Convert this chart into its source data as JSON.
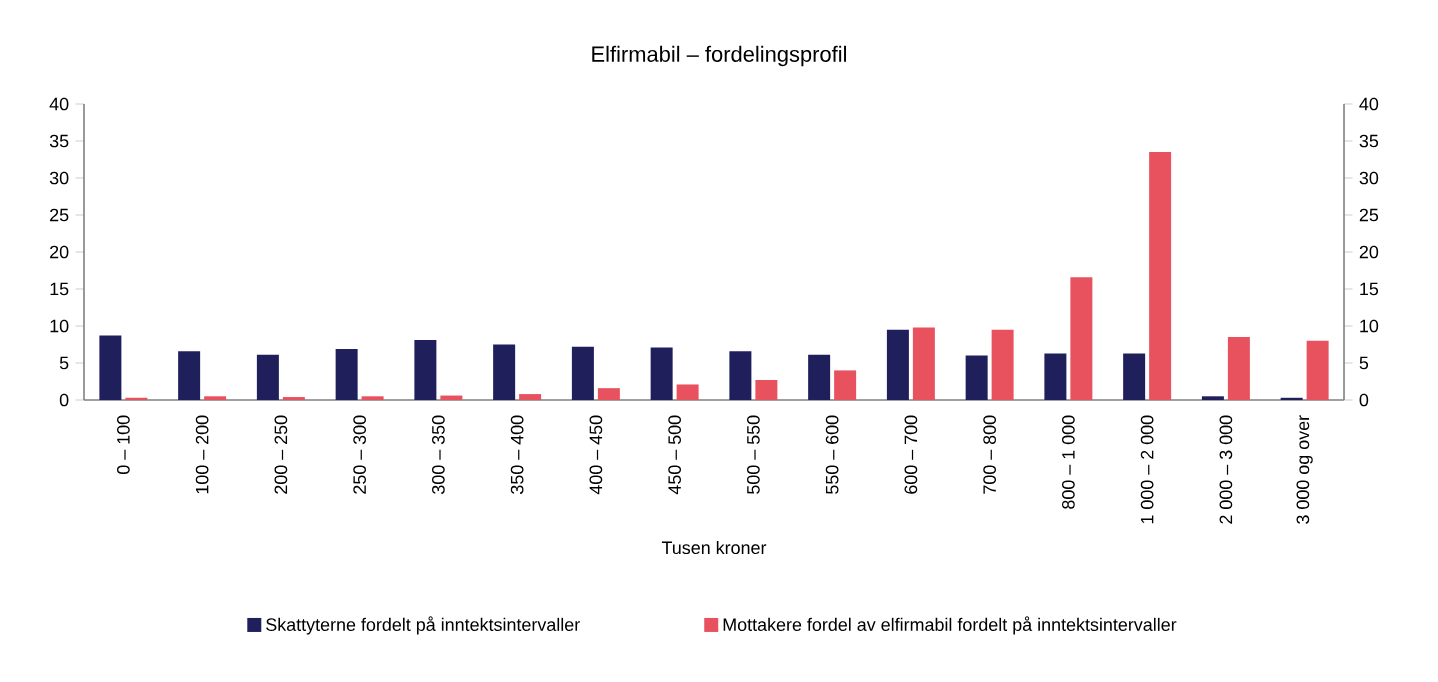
{
  "chart_data": {
    "type": "bar",
    "title": "Elfirmabil – fordelingsprofil",
    "xlabel": "Tusen kroner",
    "categories": [
      "0 – 100",
      "100 – 200",
      "200 – 250",
      "250 – 300",
      "300 – 350",
      "350 – 400",
      "400 – 450",
      "450 – 500",
      "500 – 550",
      "550 – 600",
      "600 – 700",
      "700 – 800",
      "800 – 1 000",
      "1 000 – 2 000",
      "2 000 – 3 000",
      "3 000 og over"
    ],
    "series": [
      {
        "name": "Skattyterne fordelt på inntektsintervaller",
        "color": "#1f1f5c",
        "values": [
          8.7,
          6.6,
          6.1,
          6.9,
          8.1,
          7.5,
          7.2,
          7.1,
          6.6,
          6.1,
          9.5,
          6.0,
          6.3,
          6.3,
          0.5,
          0.3
        ]
      },
      {
        "name": "Mottakere fordel av elfirmabil fordelt på inntektsintervaller",
        "color": "#e8525f",
        "values": [
          0.3,
          0.5,
          0.4,
          0.5,
          0.6,
          0.8,
          1.6,
          2.1,
          2.7,
          4.0,
          9.8,
          9.5,
          16.6,
          33.5,
          8.5,
          8.0
        ]
      }
    ],
    "ylim": [
      0,
      40
    ],
    "yticks": [
      0,
      5,
      10,
      15,
      20,
      25,
      30,
      35,
      40
    ],
    "y2lim": [
      0,
      40
    ],
    "y2ticks": [
      0,
      5,
      10,
      15,
      20,
      25,
      30,
      35,
      40
    ],
    "grid": false,
    "legend": "bottom"
  }
}
